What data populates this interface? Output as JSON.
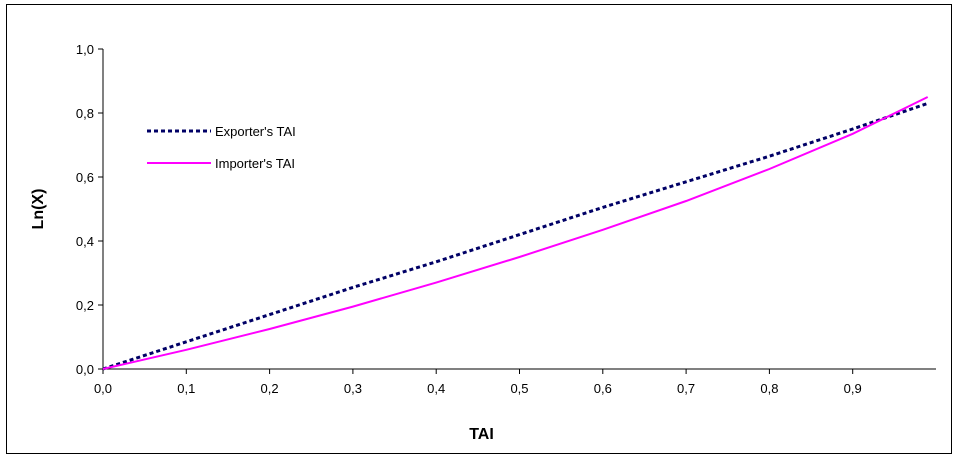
{
  "chart_data": {
    "type": "line",
    "title": "",
    "xlabel": "TAI",
    "ylabel": "Ln(X)",
    "xlim": [
      0,
      1
    ],
    "ylim": [
      0,
      1
    ],
    "x_ticks": [
      "0,0",
      "0,1",
      "0,2",
      "0,3",
      "0,4",
      "0,5",
      "0,6",
      "0,7",
      "0,8",
      "0,9"
    ],
    "y_ticks": [
      "0,0",
      "0,2",
      "0,4",
      "0,6",
      "0,8",
      "1,0"
    ],
    "grid": false,
    "legend_position": "top-left",
    "series": [
      {
        "name": "Exporter's TAI",
        "color": "#000066",
        "style": "dashed",
        "x": [
          0,
          0.1,
          0.2,
          0.3,
          0.4,
          0.5,
          0.6,
          0.7,
          0.8,
          0.9,
          0.99
        ],
        "y": [
          0.0,
          0.085,
          0.17,
          0.255,
          0.335,
          0.42,
          0.505,
          0.585,
          0.665,
          0.75,
          0.83
        ]
      },
      {
        "name": "Importer's TAI",
        "color": "#ff00ff",
        "style": "solid",
        "x": [
          0,
          0.1,
          0.2,
          0.3,
          0.4,
          0.5,
          0.6,
          0.7,
          0.8,
          0.9,
          0.99
        ],
        "y": [
          0.0,
          0.06,
          0.125,
          0.195,
          0.27,
          0.35,
          0.435,
          0.525,
          0.625,
          0.735,
          0.85
        ]
      }
    ]
  }
}
